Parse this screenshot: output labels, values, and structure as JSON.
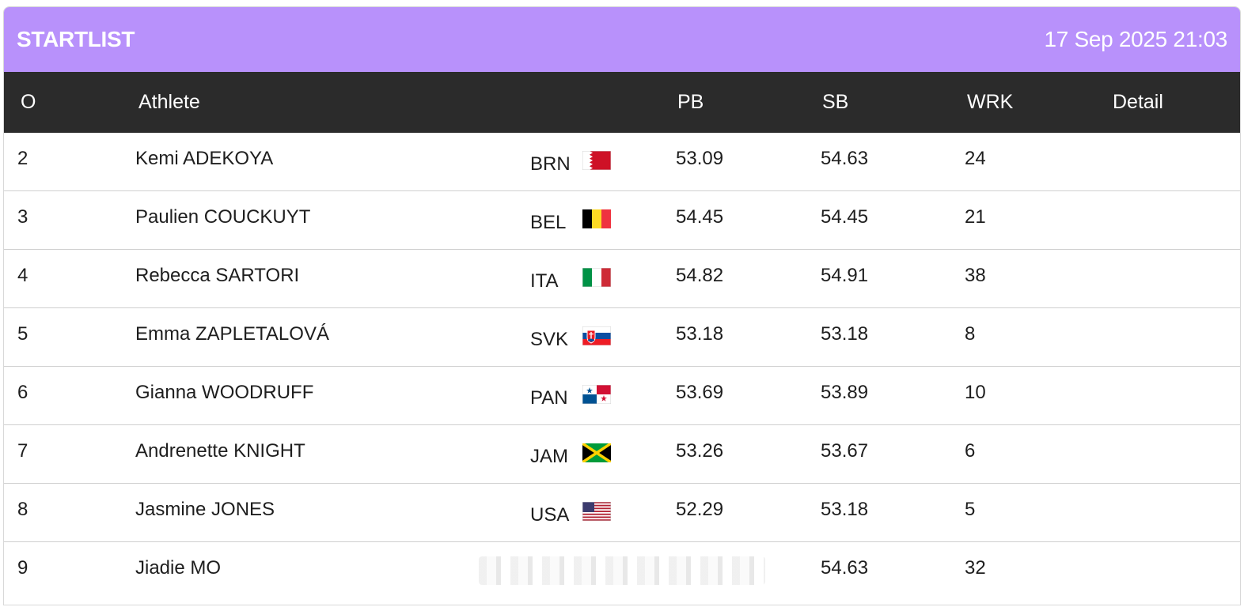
{
  "header": {
    "title": "STARTLIST",
    "datetime": "17 Sep 2025 21:03"
  },
  "columns": {
    "order": "O",
    "athlete": "Athlete",
    "pb": "PB",
    "sb": "SB",
    "wrk": "WRK",
    "detail": "Detail"
  },
  "rows": [
    {
      "order": "2",
      "athlete": "Kemi ADEKOYA",
      "nat": "BRN",
      "flag": "bahrain-flag-icon",
      "pb": "53.09",
      "sb": "54.63",
      "wrk": "24"
    },
    {
      "order": "3",
      "athlete": "Paulien COUCKUYT",
      "nat": "BEL",
      "flag": "belgium-flag-icon",
      "pb": "54.45",
      "sb": "54.45",
      "wrk": "21"
    },
    {
      "order": "4",
      "athlete": "Rebecca SARTORI",
      "nat": "ITA",
      "flag": "italy-flag-icon",
      "pb": "54.82",
      "sb": "54.91",
      "wrk": "38"
    },
    {
      "order": "5",
      "athlete": "Emma ZAPLETALOVÁ",
      "nat": "SVK",
      "flag": "slovakia-flag-icon",
      "pb": "53.18",
      "sb": "53.18",
      "wrk": "8"
    },
    {
      "order": "6",
      "athlete": "Gianna WOODRUFF",
      "nat": "PAN",
      "flag": "panama-flag-icon",
      "pb": "53.69",
      "sb": "53.89",
      "wrk": "10"
    },
    {
      "order": "7",
      "athlete": "Andrenette KNIGHT",
      "nat": "JAM",
      "flag": "jamaica-flag-icon",
      "pb": "53.26",
      "sb": "53.67",
      "wrk": "6"
    },
    {
      "order": "8",
      "athlete": "Jasmine JONES",
      "nat": "USA",
      "flag": "usa-flag-icon",
      "pb": "52.29",
      "sb": "53.18",
      "wrk": "5"
    },
    {
      "order": "9",
      "athlete": "Jiadie MO",
      "nat": "",
      "flag": "",
      "pb": "",
      "sb": "54.63",
      "wrk": "32"
    }
  ],
  "colors": {
    "title_bar": "#b891fb",
    "header_row": "#2b2b2b"
  }
}
